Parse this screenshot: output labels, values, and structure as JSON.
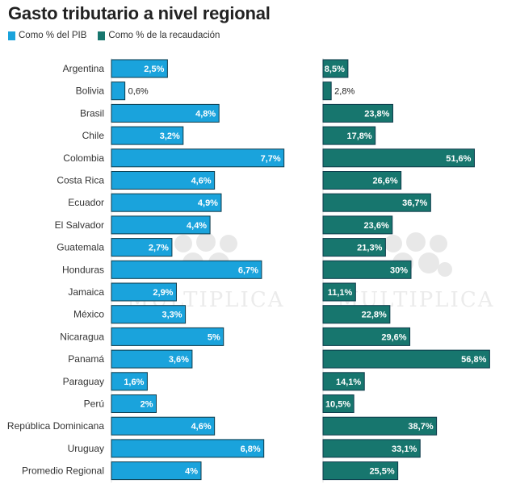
{
  "title": "Gasto tributario a nivel regional",
  "watermark": "MULTIPLICA",
  "colors": {
    "pib": "#1aa3dc",
    "recaudacion": "#17766e",
    "border": "#0d3a4a"
  },
  "chart_data": [
    {
      "type": "bar",
      "orientation": "horizontal",
      "series_name": "Como % del PIB",
      "xlim": [
        0,
        8
      ],
      "categories": [
        "Argentina",
        "Bolivia",
        "Brasil",
        "Chile",
        "Colombia",
        "Costa Rica",
        "Ecuador",
        "El Salvador",
        "Guatemala",
        "Honduras",
        "Jamaica",
        "México",
        "Nicaragua",
        "Panamá",
        "Paraguay",
        "Perú",
        "República Dominicana",
        "Uruguay",
        "Promedio Regional"
      ],
      "values": [
        2.5,
        0.6,
        4.8,
        3.2,
        7.7,
        4.6,
        4.9,
        4.4,
        2.7,
        6.7,
        2.9,
        3.3,
        5,
        3.6,
        1.6,
        2,
        4.6,
        6.8,
        4
      ],
      "labels": [
        "2,5%",
        "0,6%",
        "4,8%",
        "3,2%",
        "7,7%",
        "4,6%",
        "4,9%",
        "4,4%",
        "2,7%",
        "6,7%",
        "2,9%",
        "3,3%",
        "5%",
        "3,6%",
        "1,6%",
        "2%",
        "4,6%",
        "6,8%",
        "4%"
      ]
    },
    {
      "type": "bar",
      "orientation": "horizontal",
      "series_name": "Como % de la recaudación",
      "xlim": [
        0,
        60
      ],
      "categories": [
        "Argentina",
        "Bolivia",
        "Brasil",
        "Chile",
        "Colombia",
        "Costa Rica",
        "Ecuador",
        "El Salvador",
        "Guatemala",
        "Honduras",
        "Jamaica",
        "México",
        "Nicaragua",
        "Panamá",
        "Paraguay",
        "Perú",
        "República Dominicana",
        "Uruguay",
        "Promedio Regional"
      ],
      "values": [
        8.5,
        2.8,
        23.8,
        17.8,
        51.6,
        26.6,
        36.7,
        23.6,
        21.3,
        30,
        11.1,
        22.8,
        29.6,
        56.8,
        14.1,
        10.5,
        38.7,
        33.1,
        25.5
      ],
      "labels": [
        "8,5%",
        "2,8%",
        "23,8%",
        "17,8%",
        "51,6%",
        "26,6%",
        "36,7%",
        "23,6%",
        "21,3%",
        "30%",
        "11,1%",
        "22,8%",
        "29,6%",
        "56,8%",
        "14,1%",
        "10,5%",
        "38,7%",
        "33,1%",
        "25,5%"
      ]
    }
  ]
}
